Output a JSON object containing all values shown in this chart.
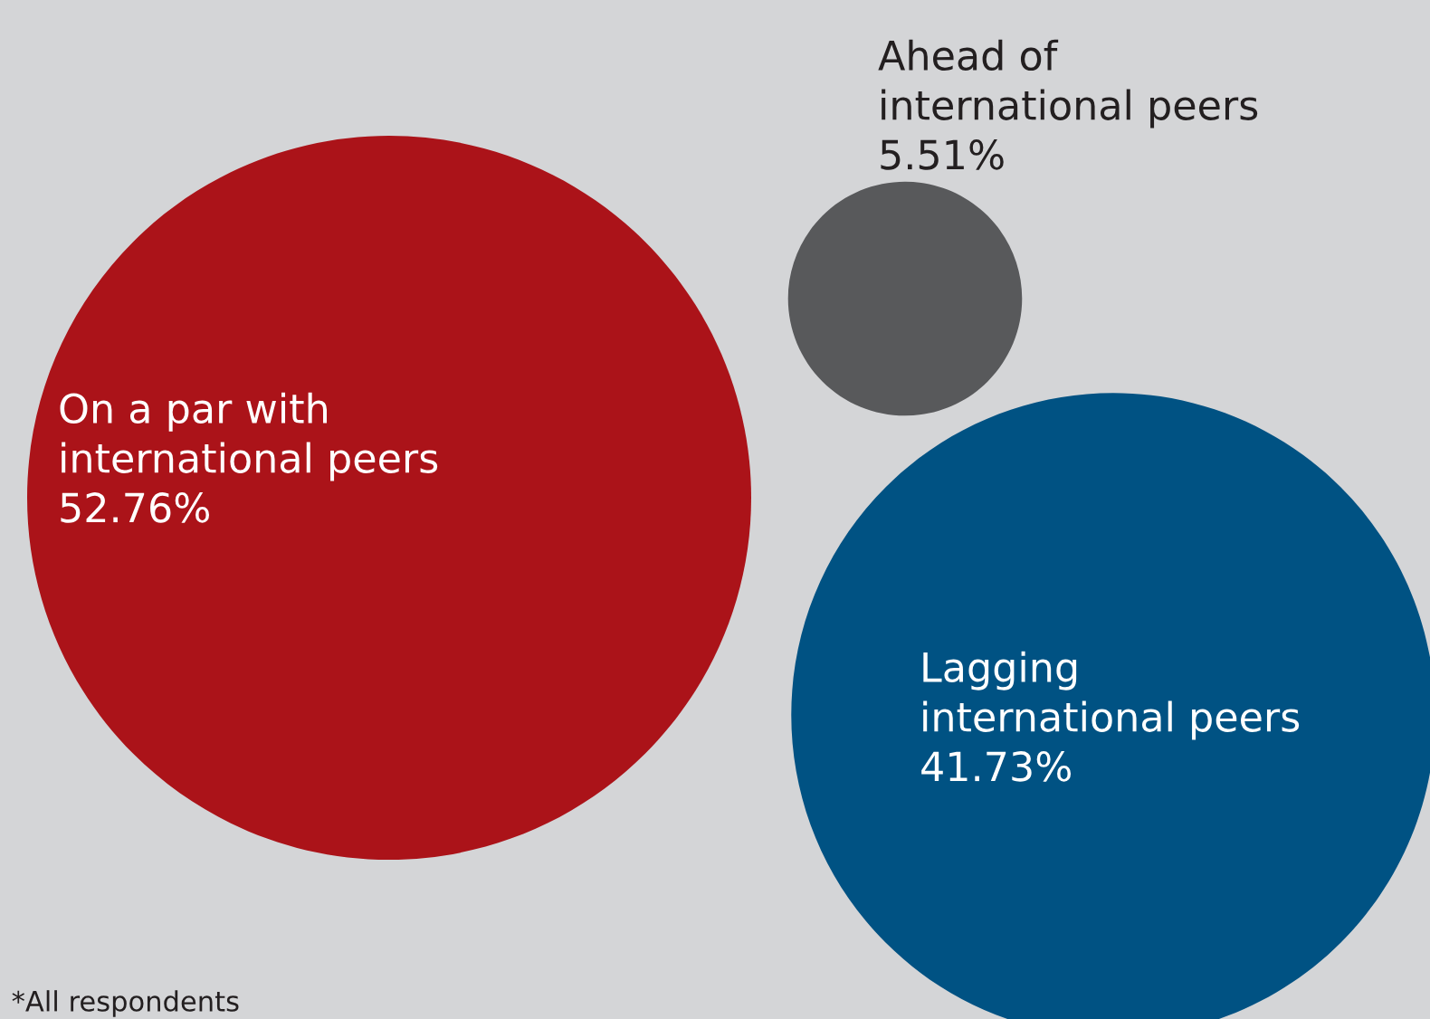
{
  "chart_data": {
    "type": "other",
    "categories": [
      "On a par with\ninternational peers",
      "Ahead of\ninternational peers",
      "Lagging\ninternational peers"
    ],
    "values": [
      52.76,
      5.51,
      41.73
    ],
    "value_labels": [
      "52.76%",
      "5.51%",
      "41.73%"
    ],
    "colors": [
      "#ab1319",
      "#58595b",
      "#005283"
    ],
    "annotations": [
      "*All respondents"
    ]
  }
}
